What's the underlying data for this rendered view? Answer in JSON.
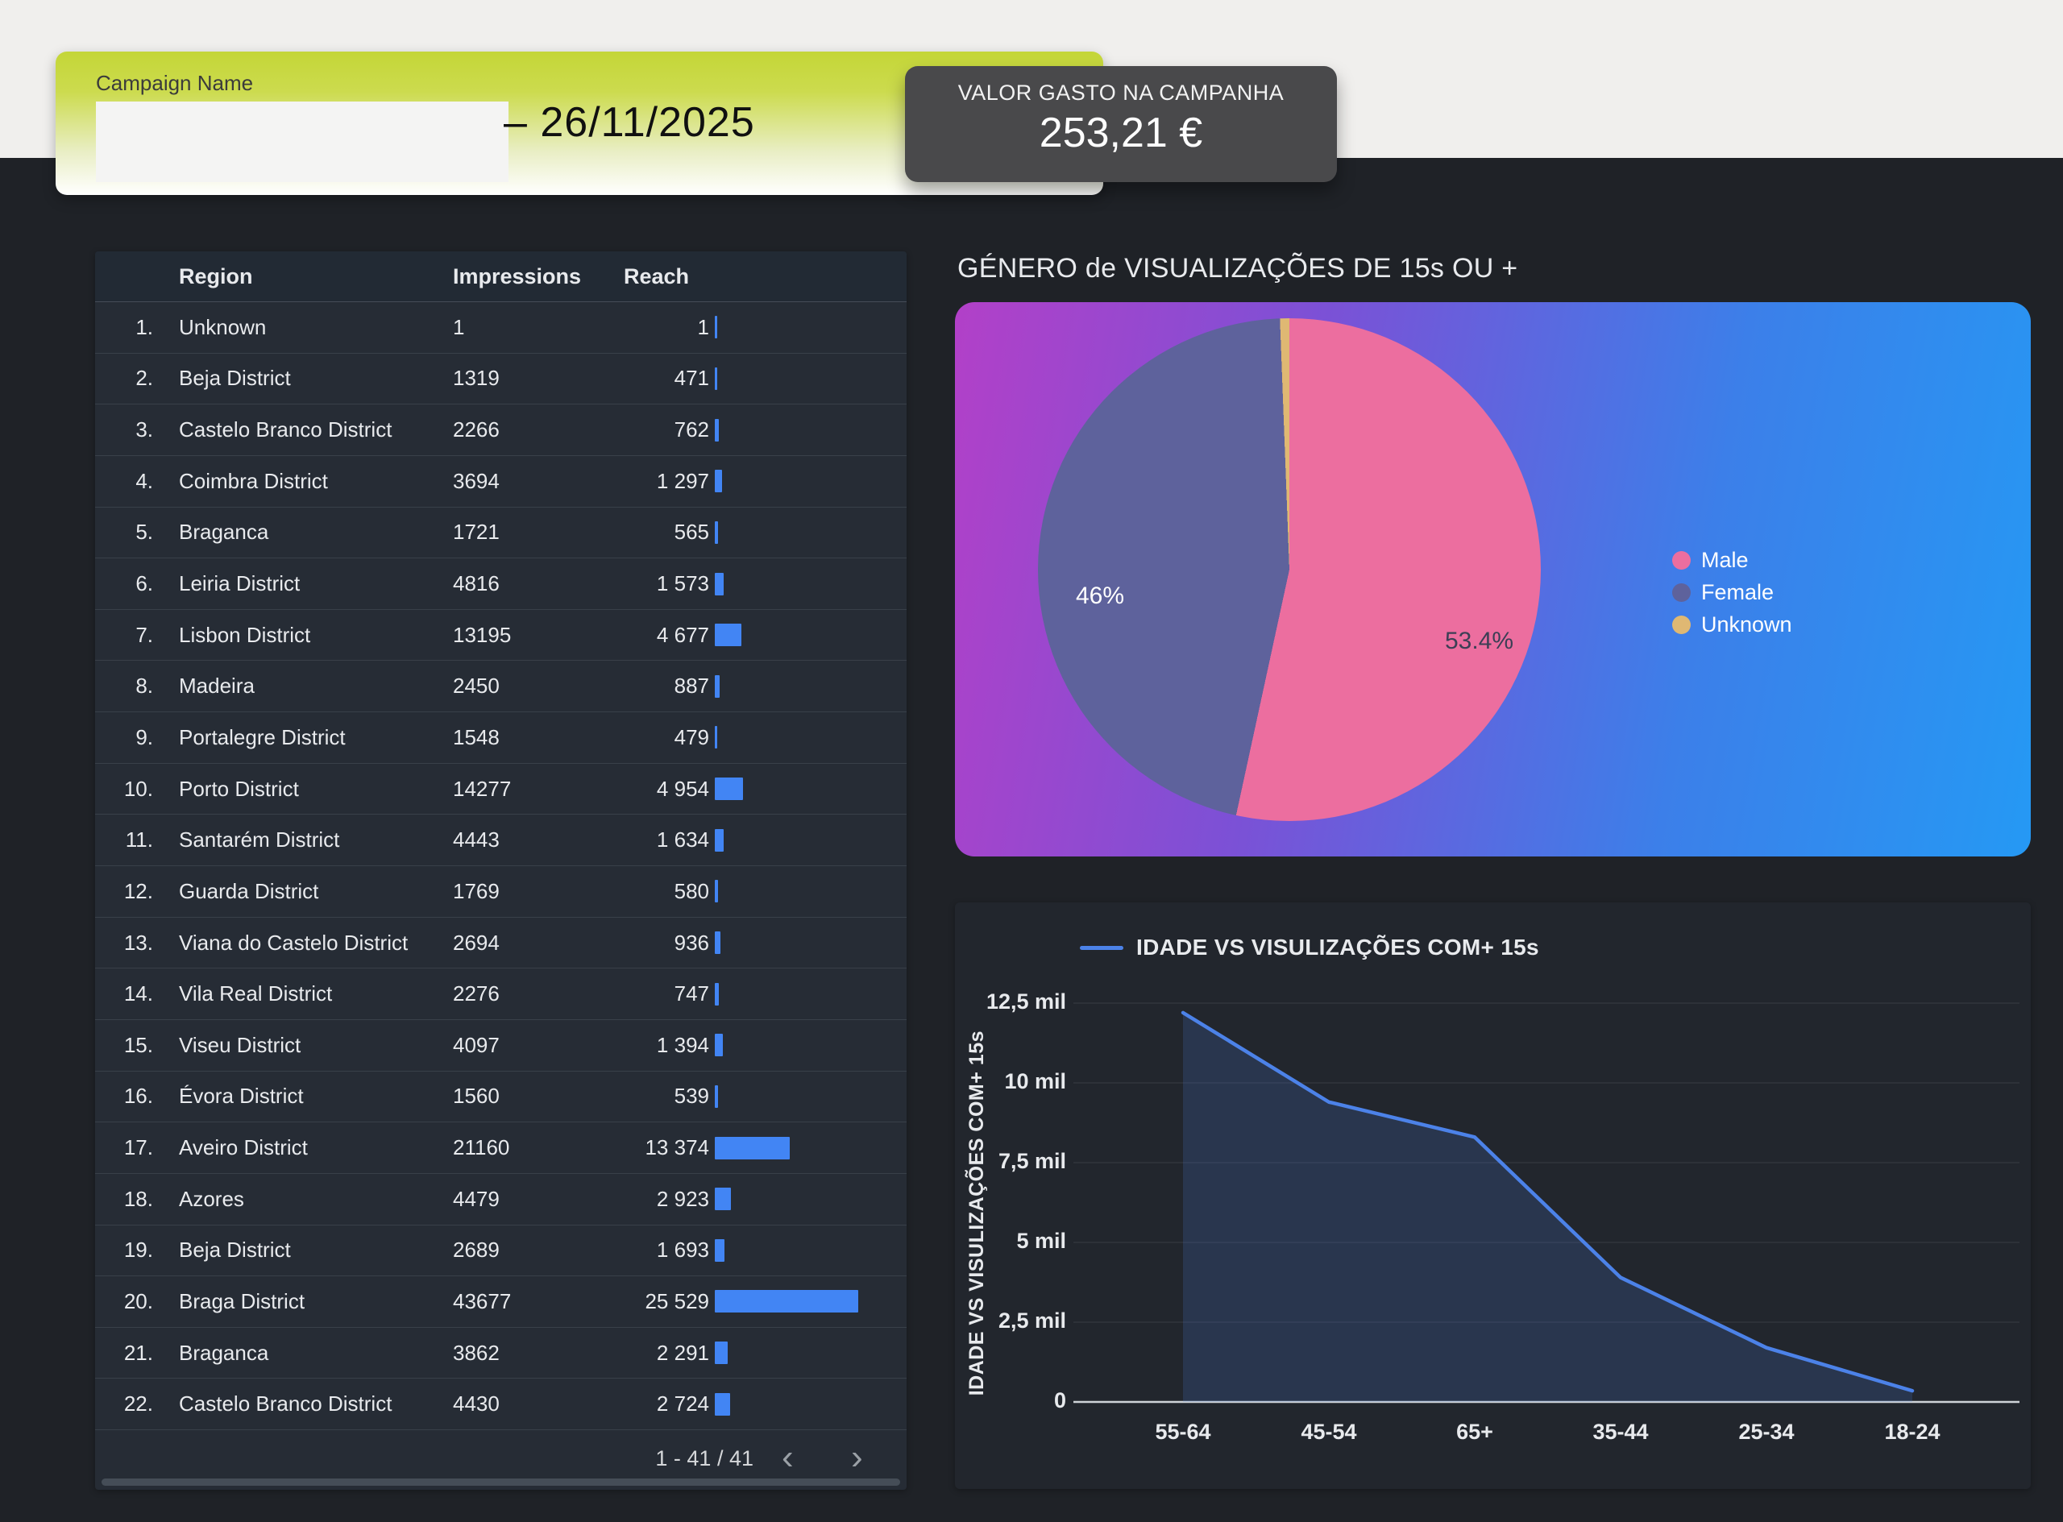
{
  "header": {
    "campaign_label": "Campaign Name",
    "campaign_value": "",
    "date_range_end": "– 26/11/2025",
    "spend_badge": {
      "title": "VALOR GASTO NA CAMPANHA",
      "value": "253,21 €"
    }
  },
  "table": {
    "columns": [
      "Region",
      "Impressions",
      "Reach"
    ],
    "rows": [
      {
        "n": "1.",
        "region": "Unknown",
        "impressions": "1",
        "reach": "1",
        "reach_num": 1
      },
      {
        "n": "2.",
        "region": "Beja District",
        "impressions": "1319",
        "reach": "471",
        "reach_num": 471
      },
      {
        "n": "3.",
        "region": "Castelo Branco District",
        "impressions": "2266",
        "reach": "762",
        "reach_num": 762
      },
      {
        "n": "4.",
        "region": "Coimbra District",
        "impressions": "3694",
        "reach": "1 297",
        "reach_num": 1297
      },
      {
        "n": "5.",
        "region": "Braganca",
        "impressions": "1721",
        "reach": "565",
        "reach_num": 565
      },
      {
        "n": "6.",
        "region": "Leiria District",
        "impressions": "4816",
        "reach": "1 573",
        "reach_num": 1573
      },
      {
        "n": "7.",
        "region": "Lisbon District",
        "impressions": "13195",
        "reach": "4 677",
        "reach_num": 4677
      },
      {
        "n": "8.",
        "region": "Madeira",
        "impressions": "2450",
        "reach": "887",
        "reach_num": 887
      },
      {
        "n": "9.",
        "region": "Portalegre District",
        "impressions": "1548",
        "reach": "479",
        "reach_num": 479
      },
      {
        "n": "10.",
        "region": "Porto District",
        "impressions": "14277",
        "reach": "4 954",
        "reach_num": 4954
      },
      {
        "n": "11.",
        "region": "Santarém District",
        "impressions": "4443",
        "reach": "1 634",
        "reach_num": 1634
      },
      {
        "n": "12.",
        "region": "Guarda District",
        "impressions": "1769",
        "reach": "580",
        "reach_num": 580
      },
      {
        "n": "13.",
        "region": "Viana do Castelo District",
        "impressions": "2694",
        "reach": "936",
        "reach_num": 936
      },
      {
        "n": "14.",
        "region": "Vila Real District",
        "impressions": "2276",
        "reach": "747",
        "reach_num": 747
      },
      {
        "n": "15.",
        "region": "Viseu District",
        "impressions": "4097",
        "reach": "1 394",
        "reach_num": 1394
      },
      {
        "n": "16.",
        "region": "Évora District",
        "impressions": "1560",
        "reach": "539",
        "reach_num": 539
      },
      {
        "n": "17.",
        "region": "Aveiro District",
        "impressions": "21160",
        "reach": "13 374",
        "reach_num": 13374
      },
      {
        "n": "18.",
        "region": "Azores",
        "impressions": "4479",
        "reach": "2 923",
        "reach_num": 2923
      },
      {
        "n": "19.",
        "region": "Beja District",
        "impressions": "2689",
        "reach": "1 693",
        "reach_num": 1693
      },
      {
        "n": "20.",
        "region": "Braga District",
        "impressions": "43677",
        "reach": "25 529",
        "reach_num": 25529
      },
      {
        "n": "21.",
        "region": "Braganca",
        "impressions": "3862",
        "reach": "2 291",
        "reach_num": 2291
      },
      {
        "n": "22.",
        "region": "Castelo Branco District",
        "impressions": "4430",
        "reach": "2 724",
        "reach_num": 2724
      }
    ],
    "max_reach": 25529,
    "bar_color": "#4285f4",
    "pagination": "1 - 41 / 41",
    "pager_prev_icon": "‹",
    "pager_next_icon": "›"
  },
  "chart_data": [
    {
      "type": "pie",
      "title": "GÉNERO de VISUALIZAÇÕES DE 15s OU +",
      "labels": [
        "Male",
        "Female",
        "Unknown"
      ],
      "values": [
        53.4,
        46,
        0.6
      ],
      "colors": [
        "#ec6e9f",
        "#5e629c",
        "#dfb873"
      ],
      "displayed_labels": {
        "male": "53.4%",
        "female": "46%"
      },
      "legend_position": "right",
      "bg_gradient": [
        "#b240c8",
        "#2599f4"
      ]
    },
    {
      "type": "line",
      "legend_label": "IDADE VS VISULIZAÇÕES COM+ 15s",
      "ylabel": "IDADE VS VISULIZAÇÕES COM+ 15s",
      "categories": [
        "55-64",
        "45-54",
        "65+",
        "35-44",
        "25-34",
        "18-24"
      ],
      "values": [
        12200,
        9400,
        8300,
        3900,
        1700,
        350
      ],
      "ylim": [
        0,
        12500
      ],
      "y_ticks": [
        {
          "label": "0",
          "value": 0
        },
        {
          "label": "2,5 mil",
          "value": 2500
        },
        {
          "label": "5 mil",
          "value": 5000
        },
        {
          "label": "7,5 mil",
          "value": 7500
        },
        {
          "label": "10 mil",
          "value": 10000
        },
        {
          "label": "12,5 mil",
          "value": 12500
        }
      ],
      "grid": true,
      "line_color": "#4c82e8",
      "area_color": "rgba(76,130,232,0.18)",
      "axis_color": "#cfd3d8"
    }
  ]
}
